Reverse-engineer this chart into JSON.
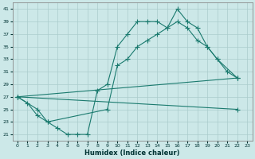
{
  "xlabel": "Humidex (Indice chaleur)",
  "bg_color": "#cce8e8",
  "grid_color": "#aacccc",
  "line_color": "#1a7a6e",
  "xlim": [
    -0.5,
    23.5
  ],
  "ylim": [
    20,
    42
  ],
  "xticks": [
    0,
    1,
    2,
    3,
    4,
    5,
    6,
    7,
    8,
    9,
    10,
    11,
    12,
    13,
    14,
    15,
    16,
    17,
    18,
    19,
    20,
    21,
    22,
    23
  ],
  "yticks": [
    21,
    23,
    25,
    27,
    29,
    31,
    33,
    35,
    37,
    39,
    41
  ],
  "line1_x": [
    0,
    1,
    2,
    3,
    4,
    5,
    6,
    7,
    8,
    9,
    10,
    11,
    12,
    13,
    14,
    15,
    16,
    17,
    18,
    19,
    20,
    21,
    22
  ],
  "line1_y": [
    27,
    26,
    24,
    23,
    22,
    21,
    21,
    21,
    28,
    29,
    35,
    37,
    39,
    39,
    39,
    38,
    41,
    39,
    38,
    35,
    33,
    31,
    30
  ],
  "line2_x": [
    0,
    2,
    3,
    9,
    10,
    11,
    12,
    13,
    14,
    15,
    16,
    17,
    18,
    19,
    20,
    22
  ],
  "line2_y": [
    27,
    25,
    23,
    25,
    32,
    33,
    35,
    36,
    37,
    38,
    39,
    38,
    36,
    35,
    33,
    30
  ],
  "line3_x": [
    0,
    22
  ],
  "line3_y": [
    27,
    30
  ],
  "line4_x": [
    0,
    22
  ],
  "line4_y": [
    27,
    25
  ]
}
